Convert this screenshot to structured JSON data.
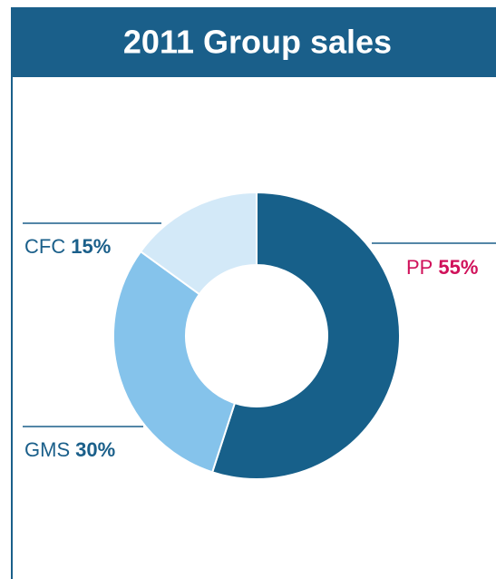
{
  "chart_data": {
    "type": "donut",
    "title": "2011 Group sales",
    "categories": [
      "PP",
      "GMS",
      "CFC"
    ],
    "values": [
      55,
      30,
      15
    ],
    "value_labels": [
      "55%",
      "30%",
      "15%"
    ],
    "colors": [
      "#17608a",
      "#85c3eb",
      "#d3e9f8"
    ],
    "label_colors": [
      "#d0115a",
      "#1a5f8a",
      "#1a5f8a"
    ]
  }
}
